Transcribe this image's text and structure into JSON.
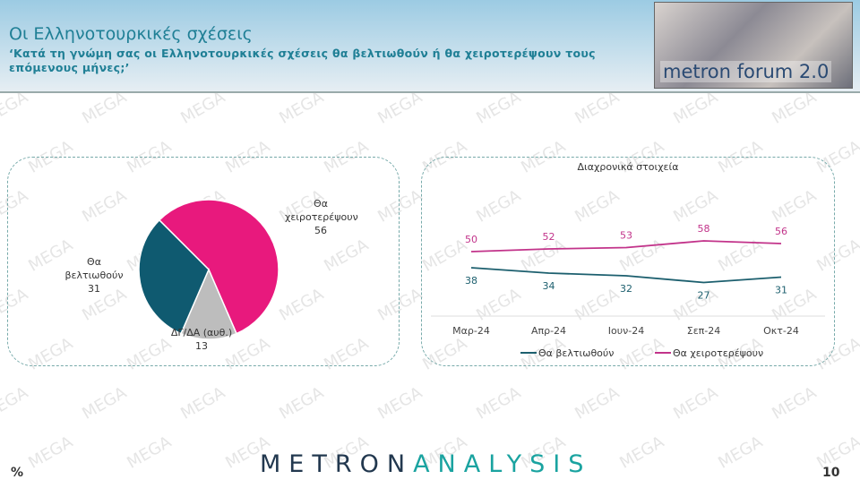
{
  "header": {
    "title": "Οι Ελληνοτουρκικές σχέσεις",
    "subtitle": "‘Κατά τη γνώμη σας οι Ελληνοτουρκικές σχέσεις θα βελτιωθούν ή θα χειροτερέψουν τους επόμενους μήνες;’",
    "logo_text": "metron forum 2.0"
  },
  "watermark": "MEGA",
  "chart_data": [
    {
      "type": "pie",
      "values": [
        {
          "label": "Θα χειροτερέψουν",
          "value": 56,
          "color": "#e8197d"
        },
        {
          "label": "ΔΓ/ΔΑ (αυθ.)",
          "value": 13,
          "color": "#bdbdbd"
        },
        {
          "label": "Θα βελτιωθούν",
          "value": 31,
          "color": "#0f5a70"
        }
      ]
    },
    {
      "type": "line",
      "title": "Διαχρονικά στοιχεία",
      "categories": [
        "Μαρ-24",
        "Απρ-24",
        "Ιουν-24",
        "Σεπ-24",
        "Οκτ-24"
      ],
      "series": [
        {
          "name": "Θα βελτιωθούν",
          "values": [
            38,
            34,
            32,
            27,
            31
          ],
          "color": "#1c5f6e"
        },
        {
          "name": "Θα χειροτερέψουν",
          "values": [
            50,
            52,
            53,
            58,
            56
          ],
          "color": "#c2338a"
        }
      ],
      "legend": "bottom",
      "grid": false
    }
  ],
  "pie_labels": {
    "worse": [
      "Θα",
      "χειροτερέψουν",
      "56"
    ],
    "better": [
      "Θα",
      "βελτιωθούν",
      "31"
    ],
    "dk": [
      "ΔΓ/ΔΑ (αυθ.)",
      "13"
    ]
  },
  "footer": {
    "brand_a": "METRON",
    "brand_b": "ANALYSIS",
    "unit": "%",
    "page": "10"
  }
}
